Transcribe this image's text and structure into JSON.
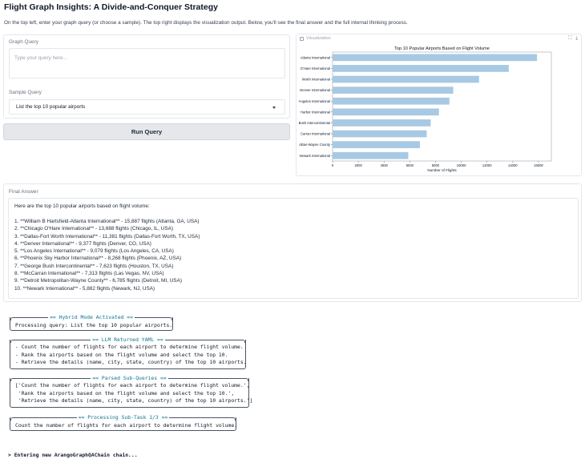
{
  "header": {
    "title": "Flight Graph Insights: A Divide-and-Conquer Strategy",
    "description": "On the top left, enter your graph query (or choose a sample). The top right displays the visualization output. Below, you'll see the final answer and the full internal thinking process."
  },
  "query": {
    "label": "Graph Query",
    "placeholder": "Type your query here..."
  },
  "sample": {
    "label": "Sample Query",
    "selected": "List the top 10 popular airports"
  },
  "run_button": "Run Query",
  "viz": {
    "label": "Visualization",
    "expand_icon": "⛶",
    "download_icon": "⤓"
  },
  "chart_data": {
    "type": "bar",
    "orientation": "horizontal",
    "title": "Top 10 Popular Airports Based on Flight Volume",
    "xlabel": "Number of Flights",
    "ylabel": "",
    "categories": [
      "Atlanta International",
      "O'Hare International",
      "Worth International",
      "Denver International",
      "Angeles International",
      "Harbor International",
      "Bush Intercontinental",
      "Carran International",
      "olitan-Wayne County",
      "Newark International"
    ],
    "values": [
      15887,
      13688,
      11381,
      9377,
      9079,
      8268,
      7623,
      7313,
      6785,
      5882
    ],
    "xlim": [
      0,
      17000
    ],
    "xticks": [
      0,
      2000,
      4000,
      6000,
      8000,
      10000,
      12000,
      14000,
      16000
    ],
    "bar_color": "#a8c9e3",
    "grid": false
  },
  "answer": {
    "label": "Final Answer",
    "intro": "Here are the top 10 popular airports based on flight volume:",
    "items": [
      "1. **William B Hartsfield-Atlanta International** - 15,887 flights (Atlanta, GA, USA)",
      "2. **Chicago O'Hare International** - 13,688 flights (Chicago, IL, USA)",
      "3. **Dallas-Fort Worth International** - 11,381 flights (Dallas-Fort Worth, TX, USA)",
      "4. **Denver International** - 9,377 flights (Denver, CO, USA)",
      "5. **Los Angeles International** - 9,079 flights (Los Angeles, CA, USA)",
      "6. **Phoenix Sky Harbor International** - 8,268 flights (Phoenix, AZ, USA)",
      "7. **George Bush Intercontinental** - 7,623 flights (Houston, TX, USA)",
      "8. **McCarran International** - 7,313 flights (Las Vegas, NV, USA)",
      "9. **Detroit Metropolitan-Wayne County** - 6,785 flights (Detroit, MI, USA)",
      "10. **Newark International** - 5,882 flights (Newark, NJ, USA)"
    ]
  },
  "log": {
    "hybrid": {
      "title": "== Hybrid Mode Activated ==",
      "lines": [
        "Processing query: List the top 10 popular airports."
      ]
    },
    "yaml": {
      "title": "== LLM Returned YAML ==",
      "lines": [
        "- Count the number of flights for each airport to determine flight volume.",
        "- Rank the airports based on the flight volume and select the top 10.",
        "- Retrieve the details (name, city, state, country) of the top 10 airports."
      ]
    },
    "parsed": {
      "title": "== Parsed Sub-Queries ==",
      "lines": [
        "['Count the number of flights for each airport to determine flight volume.',",
        " 'Rank the airports based on the flight volume and select the top 10.',",
        " 'Retrieve the details (name, city, state, country) of the top 10 airports.']"
      ]
    },
    "subtask": {
      "title": "== Processing Sub-Task 1/3 ==",
      "lines": [
        "Count the number of flights for each airport to determine flight volume."
      ]
    },
    "entering": "> Entering new ArangoGraphQAChain chain..."
  }
}
